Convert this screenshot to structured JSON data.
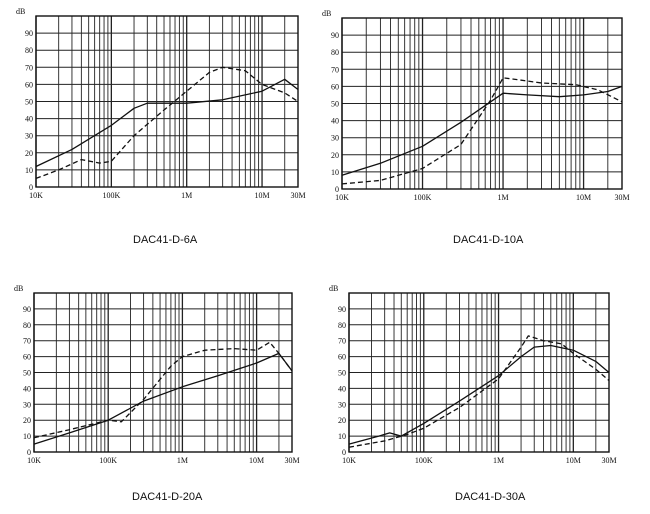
{
  "chart_data": [
    {
      "type": "line",
      "title": "DAC41-D-6A",
      "ylabel": "dB",
      "x_scale": "log",
      "xlim": [
        "10K",
        "30M"
      ],
      "ylim": [
        0,
        100
      ],
      "grid": true,
      "x_ticks": [
        "10K",
        "100K",
        "1M",
        "10M",
        "30M"
      ],
      "y_ticks": [
        "0",
        "10",
        "20",
        "30",
        "40",
        "50",
        "60",
        "70",
        "80",
        "90"
      ],
      "series": [
        {
          "style": "solid",
          "points": [
            [
              "10K",
              12
            ],
            [
              "30K",
              22
            ],
            [
              "100K",
              36
            ],
            [
              "200K",
              46
            ],
            [
              "300K",
              49
            ],
            [
              "500K",
              49
            ],
            [
              "1M",
              49
            ],
            [
              "3M",
              51
            ],
            [
              "10M",
              56
            ],
            [
              "20M",
              63
            ],
            [
              "30M",
              57
            ]
          ]
        },
        {
          "style": "dashed",
          "points": [
            [
              "10K",
              5
            ],
            [
              "20K",
              10
            ],
            [
              "40K",
              16
            ],
            [
              "70K",
              14
            ],
            [
              "100K",
              15
            ],
            [
              "200K",
              30
            ],
            [
              "500K",
              45
            ],
            [
              "1M",
              56
            ],
            [
              "2M",
              67
            ],
            [
              "3M",
              70
            ],
            [
              "6M",
              68
            ],
            [
              "10M",
              60
            ],
            [
              "20M",
              55
            ],
            [
              "30M",
              50
            ]
          ]
        }
      ]
    },
    {
      "type": "line",
      "title": "DAC41-D-10A",
      "ylabel": "dB",
      "x_scale": "log",
      "xlim": [
        "10K",
        "30M"
      ],
      "ylim": [
        0,
        100
      ],
      "grid": true,
      "x_ticks": [
        "10K",
        "100K",
        "1M",
        "10M",
        "30M"
      ],
      "y_ticks": [
        "0",
        "10",
        "20",
        "30",
        "40",
        "50",
        "60",
        "70",
        "80",
        "90"
      ],
      "series": [
        {
          "style": "solid",
          "points": [
            [
              "10K",
              8
            ],
            [
              "30K",
              15
            ],
            [
              "100K",
              25
            ],
            [
              "300K",
              39
            ],
            [
              "1M",
              56
            ],
            [
              "2M",
              55
            ],
            [
              "5M",
              54
            ],
            [
              "10M",
              55
            ],
            [
              "20M",
              57
            ],
            [
              "30M",
              60
            ]
          ]
        },
        {
          "style": "dashed",
          "points": [
            [
              "10K",
              3
            ],
            [
              "30K",
              5
            ],
            [
              "100K",
              12
            ],
            [
              "300K",
              26
            ],
            [
              "700K",
              52
            ],
            [
              "1M",
              65
            ],
            [
              "1.5M",
              64
            ],
            [
              "3M",
              62
            ],
            [
              "8M",
              61
            ],
            [
              "15M",
              58
            ],
            [
              "30M",
              51
            ]
          ]
        }
      ]
    },
    {
      "type": "line",
      "title": "DAC41-D-20A",
      "ylabel": "dB",
      "x_scale": "log",
      "xlim": [
        "10K",
        "30M"
      ],
      "ylim": [
        0,
        100
      ],
      "grid": true,
      "x_ticks": [
        "10K",
        "100K",
        "1M",
        "10M",
        "30M"
      ],
      "y_ticks": [
        "0",
        "10",
        "20",
        "30",
        "40",
        "50",
        "60",
        "70",
        "80",
        "90"
      ],
      "series": [
        {
          "style": "solid",
          "points": [
            [
              "10K",
              5
            ],
            [
              "30K",
              12
            ],
            [
              "100K",
              20
            ],
            [
              "300K",
              32
            ],
            [
              "1M",
              41
            ],
            [
              "3M",
              48
            ],
            [
              "10M",
              56
            ],
            [
              "20M",
              62
            ],
            [
              "30M",
              51
            ]
          ]
        },
        {
          "style": "dashed",
          "points": [
            [
              "10K",
              9
            ],
            [
              "30K",
              14
            ],
            [
              "100K",
              20
            ],
            [
              "150K",
              19
            ],
            [
              "300K",
              33
            ],
            [
              "700K",
              54
            ],
            [
              "1M",
              60
            ],
            [
              "2M",
              64
            ],
            [
              "5M",
              65
            ],
            [
              "10M",
              64
            ],
            [
              "15M",
              69
            ],
            [
              "20M",
              62
            ],
            [
              "30M",
              51
            ]
          ]
        }
      ]
    },
    {
      "type": "line",
      "title": "DAC41-D-30A",
      "ylabel": "dB",
      "x_scale": "log",
      "xlim": [
        "10K",
        "30M"
      ],
      "ylim": [
        0,
        100
      ],
      "grid": true,
      "x_ticks": [
        "10K",
        "100K",
        "1M",
        "10M",
        "30M"
      ],
      "y_ticks": [
        "0",
        "10",
        "20",
        "30",
        "40",
        "50",
        "60",
        "70",
        "80",
        "90"
      ],
      "series": [
        {
          "style": "solid",
          "points": [
            [
              "10K",
              5
            ],
            [
              "25K",
              10
            ],
            [
              "35K",
              12
            ],
            [
              "50K",
              10
            ],
            [
              "100K",
              18
            ],
            [
              "300K",
              32
            ],
            [
              "1M",
              48
            ],
            [
              "2M",
              60
            ],
            [
              "3M",
              66
            ],
            [
              "5M",
              67
            ],
            [
              "10M",
              64
            ],
            [
              "20M",
              57
            ],
            [
              "30M",
              50
            ]
          ]
        },
        {
          "style": "dashed",
          "points": [
            [
              "10K",
              3
            ],
            [
              "30K",
              7
            ],
            [
              "60K",
              11
            ],
            [
              "100K",
              15
            ],
            [
              "300K",
              28
            ],
            [
              "1M",
              46
            ],
            [
              "2M",
              66
            ],
            [
              "2.5M",
              73
            ],
            [
              "4M",
              70
            ],
            [
              "7M",
              68
            ],
            [
              "10M",
              62
            ],
            [
              "20M",
              52
            ],
            [
              "30M",
              45
            ]
          ]
        }
      ]
    }
  ]
}
